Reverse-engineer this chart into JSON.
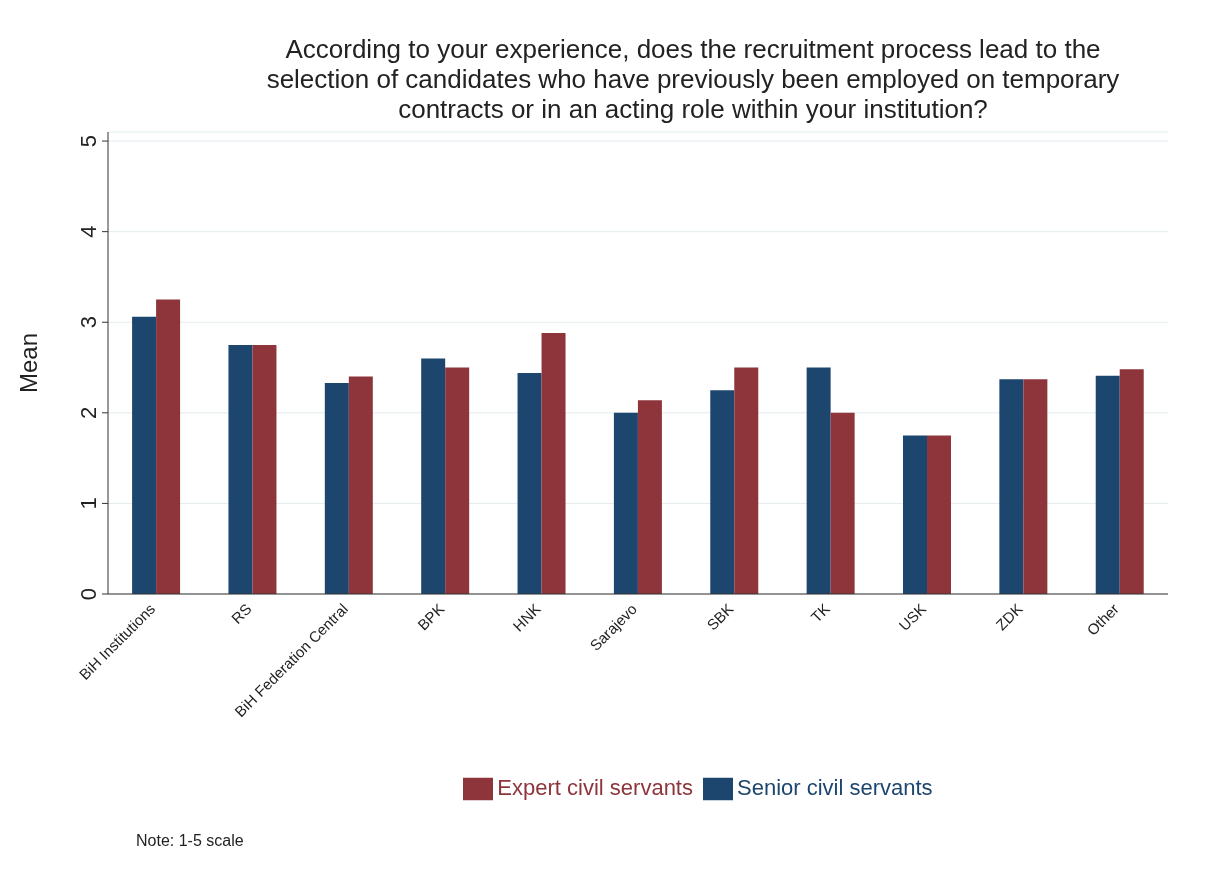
{
  "chart_data": {
    "type": "bar",
    "title": "According to your experience, does the recruitment process lead to the selection of candidates who have previously been employed on temporary contracts or in an acting role within your institution?",
    "ylabel": "Mean",
    "categories": [
      "BiH Institutions",
      "RS",
      "BiH Federation Central",
      "BPK",
      "HNK",
      "Sarajevo",
      "SBK",
      "TK",
      "USK",
      "ZDK",
      "Other"
    ],
    "series": [
      {
        "name": "Senior civil servants",
        "color": "#1d466e",
        "values": [
          3.06,
          2.75,
          2.33,
          2.6,
          2.44,
          2.0,
          2.25,
          2.5,
          1.75,
          2.37,
          2.41
        ]
      },
      {
        "name": "Expert civil servants",
        "color": "#8e353c",
        "values": [
          3.25,
          2.75,
          2.4,
          2.5,
          2.88,
          2.14,
          2.5,
          2.0,
          1.75,
          2.37,
          2.48
        ]
      }
    ],
    "ylim": [
      0,
      5.1
    ],
    "yticks": [
      0,
      1,
      2,
      3,
      4,
      5
    ],
    "grid": "y",
    "legend": "bottom",
    "annotations": [
      "Note: 1-5 scale"
    ]
  }
}
